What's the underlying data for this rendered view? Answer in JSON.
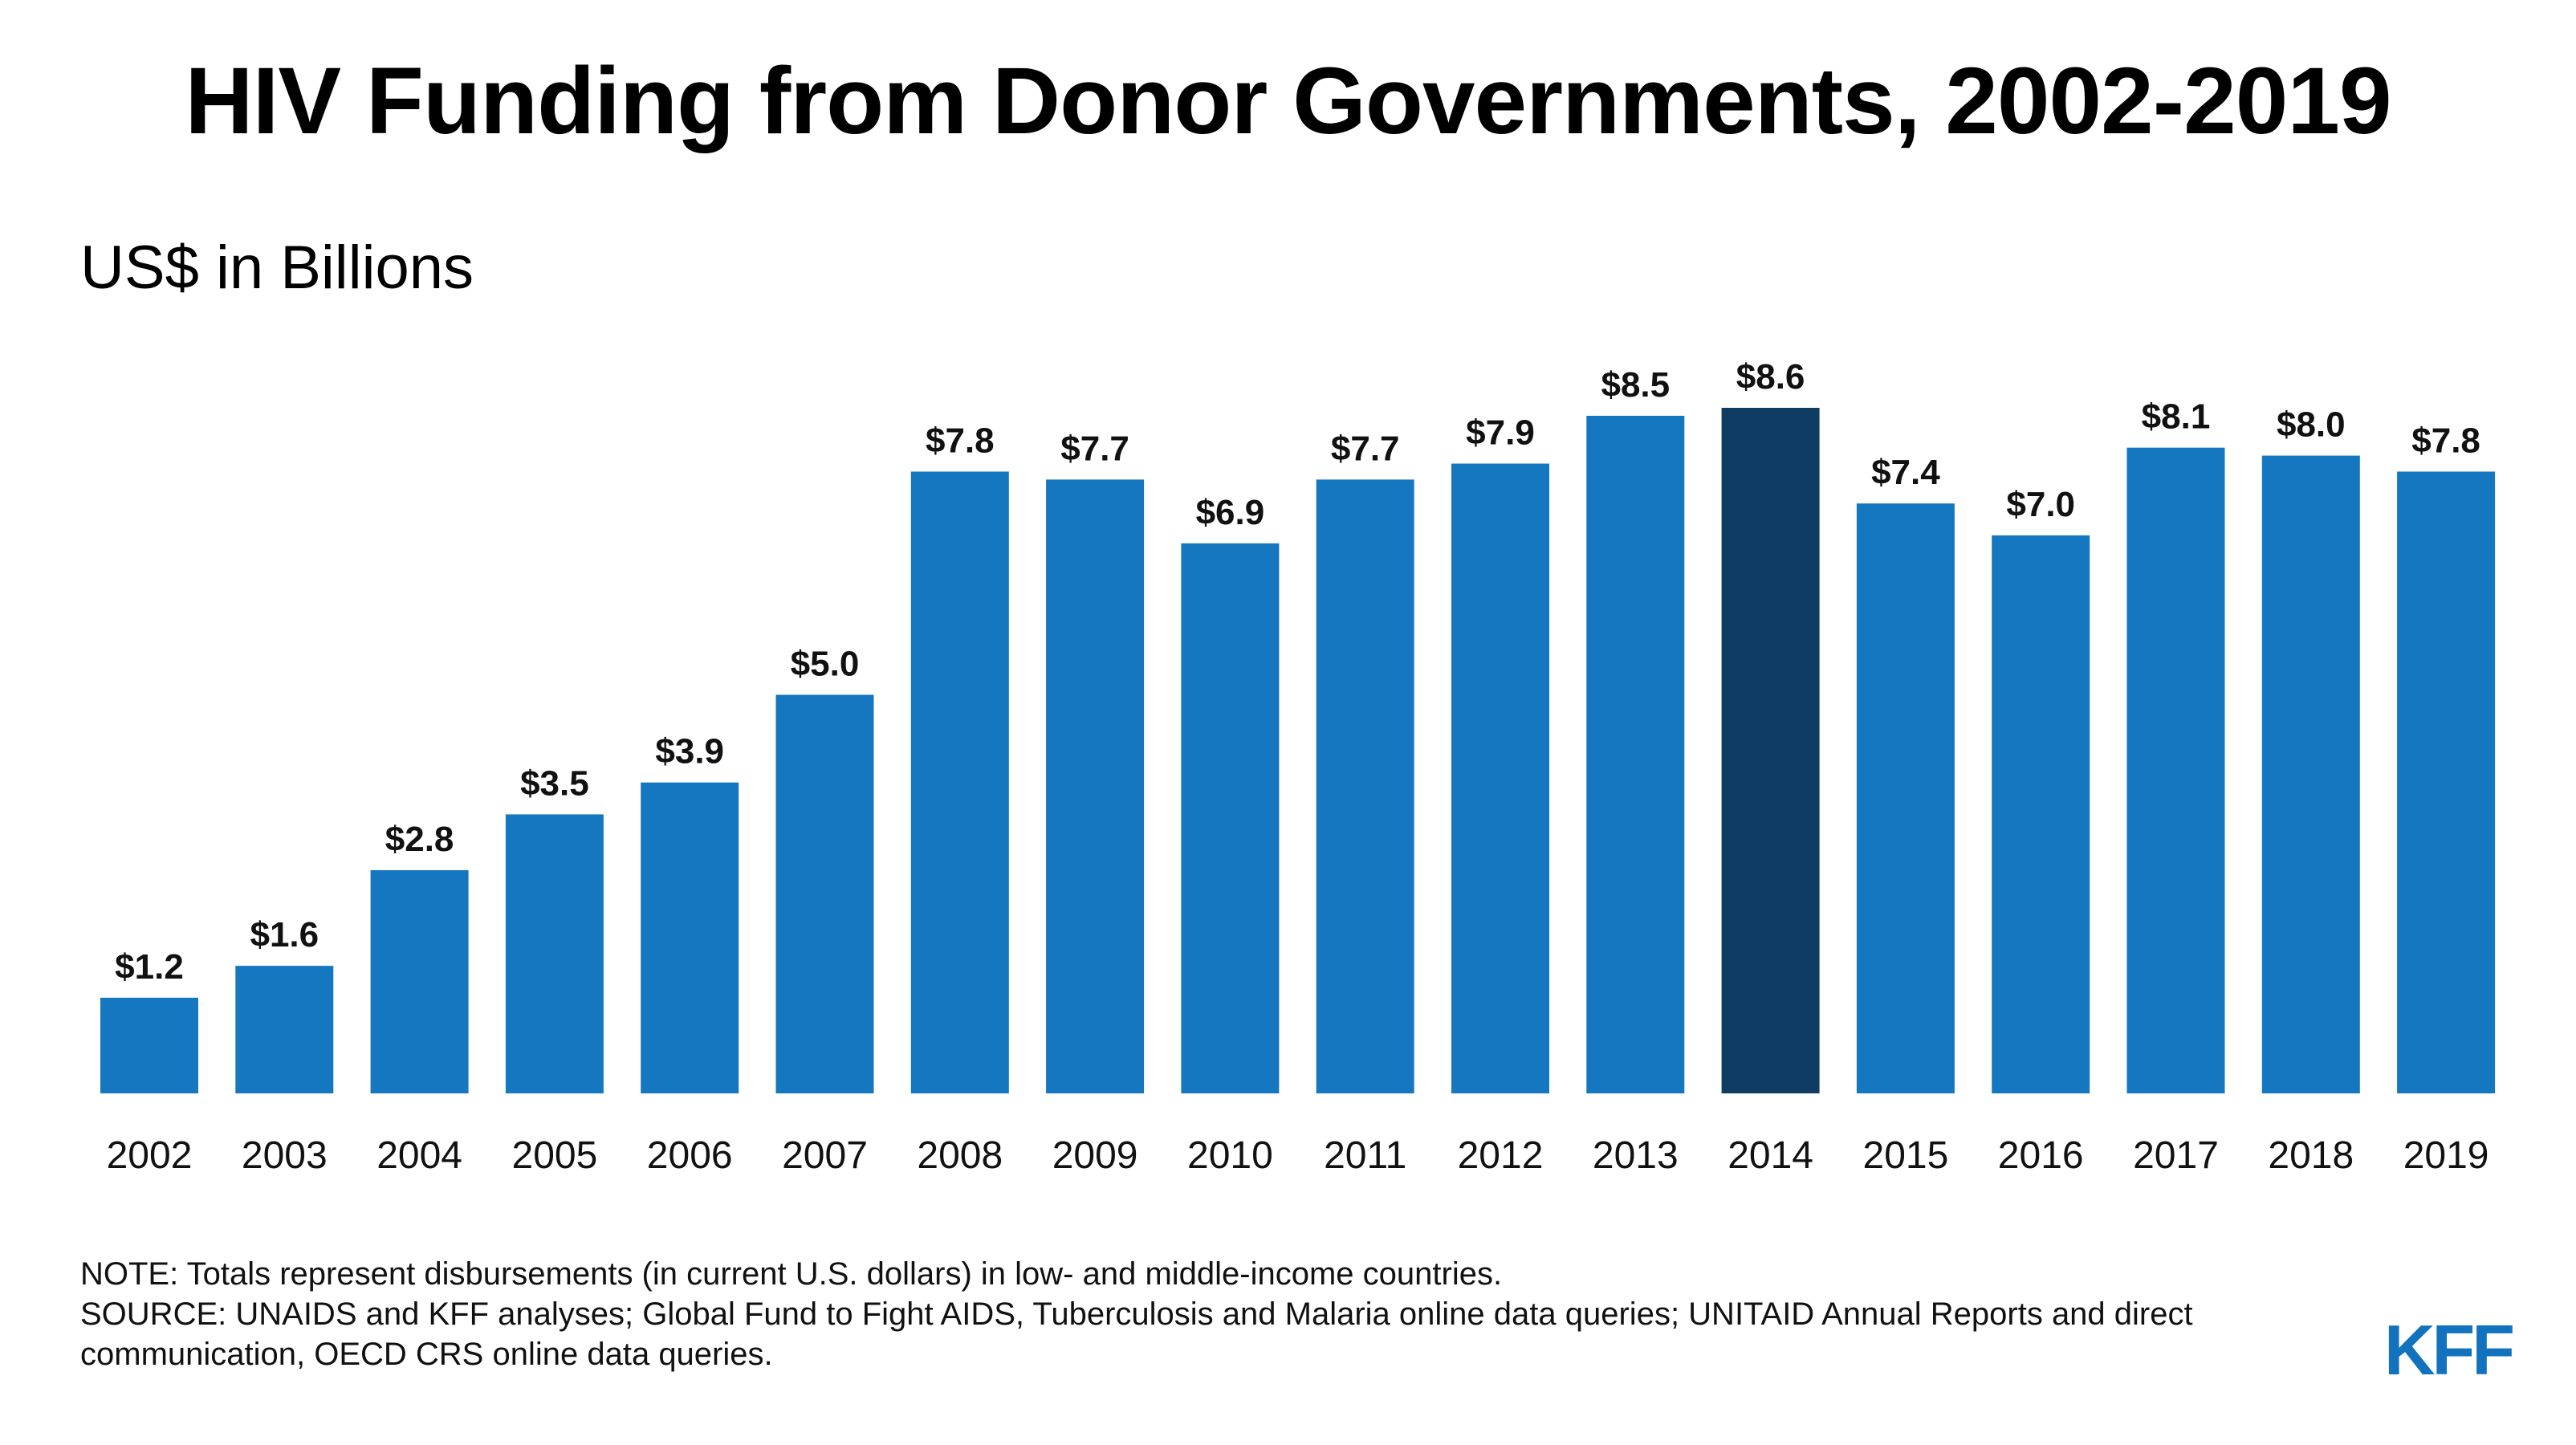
{
  "page": {
    "title": "HIV Funding from Donor Governments, 2002-2019",
    "subtitle": "US$ in Billions",
    "note": "NOTE: Totals represent disbursements (in current U.S. dollars) in low- and middle-income countries.",
    "source": "SOURCE: UNAIDS and KFF analyses; Global Fund to Fight AIDS, Tuberculosis and Malaria online data queries; UNITAID Annual Reports and direct communication, OECD CRS online data queries.",
    "logo": "KFF"
  },
  "colors": {
    "bar": "#1577bf",
    "highlight": "#0e3c63",
    "logo": "#1372bd"
  },
  "chart_data": {
    "type": "bar",
    "title": "HIV Funding from Donor Governments, 2002-2019",
    "ylabel": "US$ in Billions",
    "categories": [
      "2002",
      "2003",
      "2004",
      "2005",
      "2006",
      "2007",
      "2008",
      "2009",
      "2010",
      "2011",
      "2012",
      "2013",
      "2014",
      "2015",
      "2016",
      "2017",
      "2018",
      "2019"
    ],
    "values": [
      1.2,
      1.6,
      2.8,
      3.5,
      3.9,
      5.0,
      7.8,
      7.7,
      6.9,
      7.7,
      7.9,
      8.5,
      8.6,
      7.4,
      7.0,
      8.1,
      8.0,
      7.8
    ],
    "labels": [
      "$1.2",
      "$1.6",
      "$2.8",
      "$3.5",
      "$3.9",
      "$5.0",
      "$7.8",
      "$7.7",
      "$6.9",
      "$7.7",
      "$7.9",
      "$8.5",
      "$8.6",
      "$7.4",
      "$7.0",
      "$8.1",
      "$8.0",
      "$7.8"
    ],
    "highlight_category": "2014",
    "ylim": [
      0,
      8.6
    ],
    "grid": false,
    "legend": "none"
  }
}
